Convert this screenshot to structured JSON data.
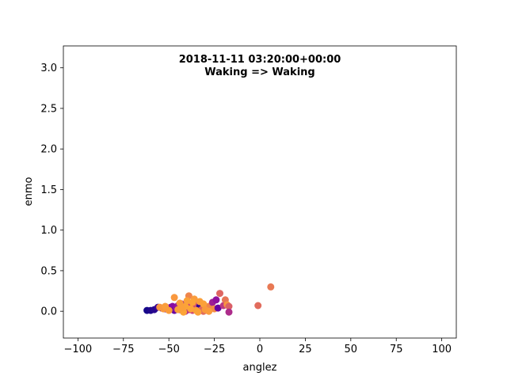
{
  "chart_data": {
    "type": "scatter",
    "title_lines": [
      "2018-11-11 03:20:00+00:00",
      "Waking => Waking"
    ],
    "xlabel": "anglez",
    "ylabel": "enmo",
    "xlim": [
      -108,
      108
    ],
    "ylim": [
      -0.33,
      3.27
    ],
    "x_ticks": [
      -100,
      -75,
      -50,
      -25,
      0,
      25,
      50,
      75,
      100
    ],
    "x_tick_labels": [
      "−100",
      "−75",
      "−50",
      "−25",
      "0",
      "25",
      "50",
      "75",
      "100"
    ],
    "y_ticks": [
      0.0,
      0.5,
      1.0,
      1.5,
      2.0,
      2.5,
      3.0
    ],
    "y_tick_labels": [
      "0.0",
      "0.5",
      "1.0",
      "1.5",
      "2.0",
      "2.5",
      "3.0"
    ],
    "grid": false,
    "colormap": "plasma",
    "color_range": [
      "#0d0887",
      "#fca636"
    ],
    "points": [
      {
        "x": -62,
        "y": 0.01,
        "c": 0.02
      },
      {
        "x": -60,
        "y": 0.01,
        "c": 0.04
      },
      {
        "x": -58,
        "y": 0.02,
        "c": 0.06
      },
      {
        "x": -56,
        "y": 0.05,
        "c": 0.1
      },
      {
        "x": -54,
        "y": 0.04,
        "c": 0.14
      },
      {
        "x": -52,
        "y": 0.03,
        "c": 0.18
      },
      {
        "x": -50,
        "y": 0.02,
        "c": 0.22
      },
      {
        "x": -49,
        "y": 0.05,
        "c": 0.25
      },
      {
        "x": -48,
        "y": 0.06,
        "c": 0.28
      },
      {
        "x": -47,
        "y": 0.01,
        "c": 0.2
      },
      {
        "x": -46,
        "y": 0.03,
        "c": 0.3
      },
      {
        "x": -45,
        "y": 0.07,
        "c": 0.32
      },
      {
        "x": -44,
        "y": 0.02,
        "c": 0.35
      },
      {
        "x": -43,
        "y": 0.09,
        "c": 0.38
      },
      {
        "x": -42,
        "y": 0.04,
        "c": 0.12
      },
      {
        "x": -41,
        "y": 0.0,
        "c": 0.4
      },
      {
        "x": -40,
        "y": 0.05,
        "c": 0.15
      },
      {
        "x": -39,
        "y": 0.02,
        "c": 0.45
      },
      {
        "x": -38,
        "y": 0.08,
        "c": 0.48
      },
      {
        "x": -37,
        "y": 0.01,
        "c": 0.5
      },
      {
        "x": -36,
        "y": 0.04,
        "c": 0.52
      },
      {
        "x": -35,
        "y": 0.1,
        "c": 0.55
      },
      {
        "x": -34,
        "y": 0.03,
        "c": 0.58
      },
      {
        "x": -33,
        "y": 0.06,
        "c": 0.08
      },
      {
        "x": -32,
        "y": 0.02,
        "c": 0.6
      },
      {
        "x": -31,
        "y": 0.0,
        "c": 0.62
      },
      {
        "x": -30,
        "y": 0.04,
        "c": 0.65
      },
      {
        "x": -29,
        "y": 0.01,
        "c": 0.68
      },
      {
        "x": -28,
        "y": 0.06,
        "c": 0.7
      },
      {
        "x": -26,
        "y": 0.11,
        "c": 0.35
      },
      {
        "x": -25,
        "y": 0.03,
        "c": 0.72
      },
      {
        "x": -24,
        "y": 0.14,
        "c": 0.3
      },
      {
        "x": -23,
        "y": 0.04,
        "c": 0.2
      },
      {
        "x": -22,
        "y": 0.22,
        "c": 0.6
      },
      {
        "x": -20,
        "y": 0.07,
        "c": 0.45
      },
      {
        "x": -19,
        "y": 0.14,
        "c": 0.65
      },
      {
        "x": -18,
        "y": 0.08,
        "c": 0.75
      },
      {
        "x": -17,
        "y": 0.06,
        "c": 0.58
      },
      {
        "x": -17,
        "y": -0.01,
        "c": 0.4
      },
      {
        "x": -47,
        "y": 0.17,
        "c": 0.8
      },
      {
        "x": -39,
        "y": 0.19,
        "c": 0.7
      },
      {
        "x": -36,
        "y": 0.15,
        "c": 0.85
      },
      {
        "x": -33,
        "y": 0.12,
        "c": 0.9
      },
      {
        "x": -31,
        "y": 0.09,
        "c": 0.92
      },
      {
        "x": -44,
        "y": 0.1,
        "c": 0.88
      },
      {
        "x": -41,
        "y": 0.06,
        "c": 0.95
      },
      {
        "x": -38,
        "y": 0.03,
        "c": 0.97
      },
      {
        "x": -35,
        "y": 0.01,
        "c": 0.93
      },
      {
        "x": -42,
        "y": -0.01,
        "c": 0.98
      },
      {
        "x": -45,
        "y": 0.02,
        "c": 0.9
      },
      {
        "x": -50,
        "y": 0.01,
        "c": 0.85
      },
      {
        "x": -53,
        "y": 0.03,
        "c": 0.8
      },
      {
        "x": -55,
        "y": 0.05,
        "c": 0.78
      },
      {
        "x": -52,
        "y": 0.06,
        "c": 0.88
      },
      {
        "x": -34,
        "y": -0.01,
        "c": 0.96
      },
      {
        "x": -30,
        "y": 0.02,
        "c": 0.82
      },
      {
        "x": -28,
        "y": 0.0,
        "c": 0.86
      },
      {
        "x": -37,
        "y": 0.11,
        "c": 0.99
      },
      {
        "x": -40,
        "y": 0.13,
        "c": 0.94
      },
      {
        "x": -43,
        "y": 0.04,
        "c": 0.91
      },
      {
        "x": -1,
        "y": 0.07,
        "c": 0.62
      },
      {
        "x": 6,
        "y": 0.3,
        "c": 0.66
      }
    ]
  }
}
